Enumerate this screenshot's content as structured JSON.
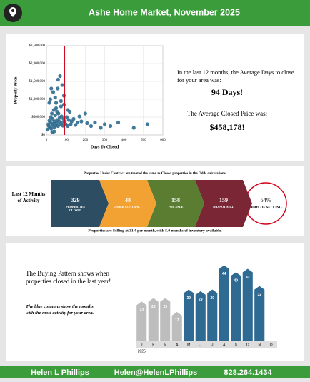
{
  "header": {
    "title": "Ashe Home Market, November 2025"
  },
  "chart_data": [
    {
      "type": "scatter",
      "x_label": "Days To Closed",
      "y_label": "Property Price",
      "color": "#2f6b8f",
      "avg_line": 94,
      "avg_color": "#d0021b",
      "xlim": [
        0,
        600
      ],
      "xticks": [
        0,
        100,
        200,
        300,
        400,
        500,
        600
      ],
      "ylim": [
        0,
        2500000
      ],
      "yticks": [
        {
          "value": 0,
          "label": "$0"
        },
        {
          "value": 500000,
          "label": "$500,000"
        },
        {
          "value": 1000000,
          "label": "$1,000,000"
        },
        {
          "value": 1500000,
          "label": "$1,500,000"
        },
        {
          "value": 2000000,
          "label": "$2,000,000"
        },
        {
          "value": 2500000,
          "label": "$2,500,000"
        }
      ],
      "grid": true,
      "x": [
        5,
        10,
        12,
        15,
        18,
        20,
        22,
        25,
        28,
        30,
        32,
        35,
        38,
        40,
        42,
        45,
        48,
        50,
        52,
        55,
        58,
        60,
        62,
        65,
        68,
        70,
        72,
        75,
        78,
        80,
        82,
        85,
        88,
        90,
        95,
        100,
        105,
        110,
        115,
        120,
        125,
        130,
        140,
        150,
        160,
        170,
        180,
        200,
        210,
        230,
        250,
        280,
        300,
        330,
        370,
        450,
        520,
        20,
        35,
        50,
        60,
        75,
        90,
        110,
        25,
        40,
        30,
        55,
        15,
        45
      ],
      "values": [
        150000,
        300000,
        250000,
        400000,
        200000,
        350000,
        500000,
        180000,
        600000,
        280000,
        450000,
        320000,
        700000,
        220000,
        380000,
        550000,
        260000,
        900000,
        330000,
        420000,
        1300000,
        250000,
        600000,
        380000,
        480000,
        1650000,
        300000,
        800000,
        520000,
        350000,
        1400000,
        260000,
        450000,
        1100000,
        380000,
        300000,
        500000,
        250000,
        420000,
        650000,
        300000,
        380000,
        450000,
        280000,
        350000,
        520000,
        380000,
        600000,
        330000,
        250000,
        350000,
        200000,
        300000,
        250000,
        350000,
        200000,
        300000,
        1000000,
        1200000,
        750000,
        1550000,
        950000,
        850000,
        700000,
        1300000,
        100000,
        80000,
        650000,
        900000,
        1050000
      ]
    },
    {
      "type": "bar",
      "categories": [
        "J",
        "F",
        "M",
        "A",
        "M",
        "J",
        "J",
        "A",
        "S",
        "O",
        "N",
        "D"
      ],
      "values": [
        23,
        25,
        25,
        17,
        30,
        29,
        30,
        44,
        40,
        42,
        32,
        null
      ],
      "colors": [
        "#bdbdbd",
        "#bdbdbd",
        "#bdbdbd",
        "#bdbdbd",
        "#2e6a92",
        "#2e6a92",
        "#2e6a92",
        "#2e6a92",
        "#2e6a92",
        "#2e6a92",
        "#2e6a92",
        "#bdbdbd"
      ],
      "year_label": "2025",
      "ylim": [
        0,
        48
      ]
    }
  ],
  "stats": {
    "days_intro": "In the last 12 months, the Average Days to close for your area was:",
    "days_value": "94 Days!",
    "price_intro": "The Average Closed Price was:",
    "price_value": "$458,178!"
  },
  "funnel": {
    "note": "Properties Under Contract are treated the same as Closed properties in the Odds calculations.",
    "label": "Last 12 Months of Activity",
    "steps": [
      {
        "value": 329,
        "label": "PROPERTIES CLOSED",
        "color": "#2d4d63"
      },
      {
        "value": 48,
        "label": "UNDER CONTRACT",
        "color": "#f2a233"
      },
      {
        "value": 158,
        "label": "FOR SALE",
        "color": "#5a7d32"
      },
      {
        "value": 159,
        "label": "DID NOT SELL",
        "color": "#7b2634"
      }
    ],
    "odds": {
      "value": "54%",
      "label": "ODDS OF SELLING"
    },
    "footer": "Properties are Selling at 31.4 per month, with 5.0 months of inventory available."
  },
  "pattern": {
    "text": "The Buying Pattern shows when properties closed in the last year!",
    "note": "The blue columns show the months with the most activity for your area."
  },
  "footer": {
    "name": "Helen L Phillips",
    "email": "Helen@HelenLPhillips",
    "phone": "828.264.1434"
  }
}
